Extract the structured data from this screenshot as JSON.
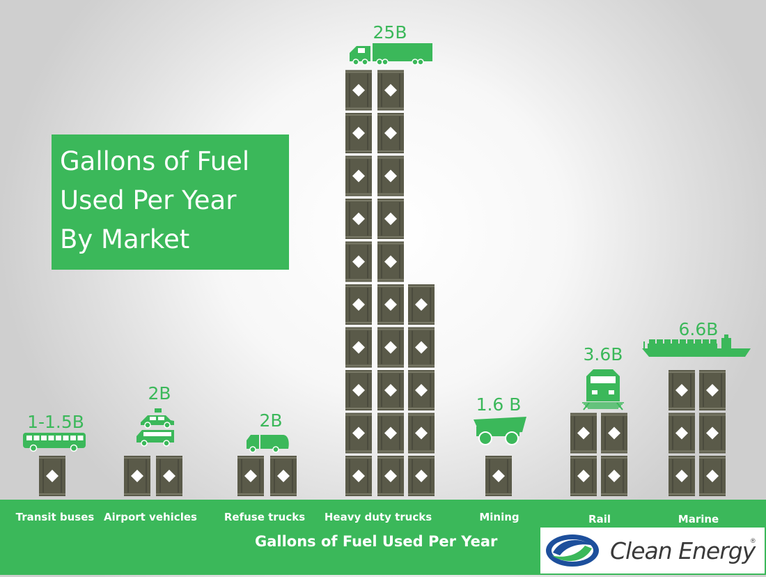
{
  "title": {
    "lines": [
      "Gallons of Fuel",
      "Used Per Year",
      "By Market"
    ]
  },
  "chart_data": {
    "type": "bar",
    "xlabel": "Gallons of Fuel Used Per Year",
    "categories": [
      "Transit buses",
      "Airport vehicles",
      "Refuse trucks",
      "Heavy duty trucks",
      "Mining",
      "Rail",
      "Marine"
    ],
    "value_labels": [
      "1-1.5B",
      "2B",
      "2B",
      "25B",
      "1.6 B",
      "3.6B",
      "6.6B"
    ],
    "values": [
      1.25,
      2,
      2,
      25,
      1.6,
      3.6,
      6.6
    ],
    "barrel_stacks": [
      [
        1
      ],
      [
        1,
        1
      ],
      [
        1,
        1
      ],
      [
        10,
        10,
        5
      ],
      [
        1
      ],
      [
        2,
        2
      ],
      [
        3,
        3
      ]
    ],
    "vehicle_icons": [
      "bus-icon",
      "airport-vehicles-icon",
      "refuse-truck-icon",
      "semi-truck-icon",
      "mining-truck-icon",
      "locomotive-icon",
      "cargo-ship-icon"
    ],
    "colors": {
      "accent": "#3bb85a",
      "barrel": "#5a5a49",
      "label": "#3bb85a"
    }
  },
  "brand": {
    "name": "Clean Energy",
    "reg": "®"
  }
}
